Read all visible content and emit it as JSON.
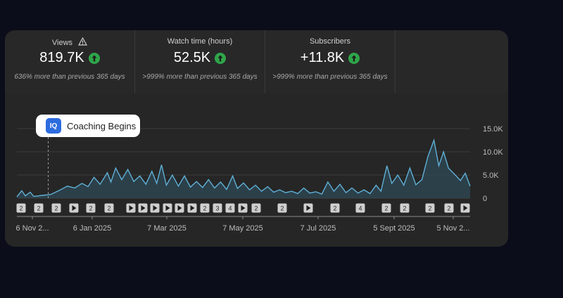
{
  "metrics": [
    {
      "label": "Views",
      "value": "819.7K",
      "note": "636% more than previous 365 days",
      "warn_icon": "warning-triangle-icon"
    },
    {
      "label": "Watch time (hours)",
      "value": "52.5K",
      "note": ">999% more than previous 365 days"
    },
    {
      "label": "Subscribers",
      "value": "+11.8K",
      "note": ">999% more than previous 365 days"
    }
  ],
  "trend_icon": "trend-up-circle-icon",
  "colors": {
    "positive": "#2fa54a",
    "line": "#5fb0d6",
    "area": "#2f4a57"
  },
  "callout": {
    "label": "Coaching Begins",
    "logo_text": "IQ"
  },
  "markers": [
    {
      "kind": "count",
      "text": "2"
    },
    {
      "kind": "count",
      "text": "2"
    },
    {
      "kind": "count",
      "text": "2"
    },
    {
      "kind": "play",
      "text": ""
    },
    {
      "kind": "count",
      "text": "2"
    },
    {
      "kind": "count",
      "text": "2"
    },
    {
      "kind": "play",
      "text": ""
    },
    {
      "kind": "play",
      "text": ""
    },
    {
      "kind": "play",
      "text": ""
    },
    {
      "kind": "play",
      "text": ""
    },
    {
      "kind": "play",
      "text": ""
    },
    {
      "kind": "play",
      "text": ""
    },
    {
      "kind": "count",
      "text": "2"
    },
    {
      "kind": "count",
      "text": "3"
    },
    {
      "kind": "count",
      "text": "4"
    },
    {
      "kind": "play",
      "text": ""
    },
    {
      "kind": "count",
      "text": "2"
    },
    {
      "kind": "count",
      "text": "2"
    },
    {
      "kind": "play",
      "text": ""
    },
    {
      "kind": "count",
      "text": "2"
    },
    {
      "kind": "count",
      "text": "4"
    },
    {
      "kind": "count",
      "text": "2"
    },
    {
      "kind": "count",
      "text": "2"
    },
    {
      "kind": "count",
      "text": "2"
    },
    {
      "kind": "count",
      "text": "2"
    },
    {
      "kind": "play",
      "text": ""
    }
  ],
  "chart_data": {
    "type": "area",
    "y_ticks": [
      "15.0K",
      "10.0K",
      "5.0K",
      "0"
    ],
    "ylim": [
      0,
      15000
    ],
    "x_labels": [
      "6 Nov 2...",
      "6 Jan 2025",
      "7 Mar 2025",
      "7 May 2025",
      "7 Jul 2025",
      "5 Sept 2025",
      "5 Nov 2..."
    ],
    "grid": true,
    "annotation": {
      "label": "Coaching Begins",
      "x": "2024-12-02"
    },
    "series": [
      {
        "values": [
          {
            "x": "2024-11-06",
            "y": 300
          },
          {
            "x": "2024-11-10",
            "y": 1600
          },
          {
            "x": "2024-11-13",
            "y": 500
          },
          {
            "x": "2024-11-17",
            "y": 1300
          },
          {
            "x": "2024-11-20",
            "y": 400
          },
          {
            "x": "2024-11-27",
            "y": 600
          },
          {
            "x": "2024-12-04",
            "y": 800
          },
          {
            "x": "2024-12-12",
            "y": 1800
          },
          {
            "x": "2024-12-18",
            "y": 2600
          },
          {
            "x": "2024-12-24",
            "y": 2200
          },
          {
            "x": "2024-12-30",
            "y": 3200
          },
          {
            "x": "2025-01-04",
            "y": 2500
          },
          {
            "x": "2025-01-09",
            "y": 4500
          },
          {
            "x": "2025-01-14",
            "y": 3000
          },
          {
            "x": "2025-01-20",
            "y": 5500
          },
          {
            "x": "2025-01-23",
            "y": 3500
          },
          {
            "x": "2025-01-27",
            "y": 6500
          },
          {
            "x": "2025-02-01",
            "y": 4000
          },
          {
            "x": "2025-02-06",
            "y": 6200
          },
          {
            "x": "2025-02-11",
            "y": 3600
          },
          {
            "x": "2025-02-16",
            "y": 4800
          },
          {
            "x": "2025-02-21",
            "y": 3000
          },
          {
            "x": "2025-02-26",
            "y": 5800
          },
          {
            "x": "2025-03-02",
            "y": 3200
          },
          {
            "x": "2025-03-06",
            "y": 7200
          },
          {
            "x": "2025-03-10",
            "y": 2800
          },
          {
            "x": "2025-03-15",
            "y": 5000
          },
          {
            "x": "2025-03-20",
            "y": 2600
          },
          {
            "x": "2025-03-25",
            "y": 4800
          },
          {
            "x": "2025-03-30",
            "y": 2400
          },
          {
            "x": "2025-04-04",
            "y": 3600
          },
          {
            "x": "2025-04-09",
            "y": 2300
          },
          {
            "x": "2025-04-14",
            "y": 4000
          },
          {
            "x": "2025-04-19",
            "y": 2200
          },
          {
            "x": "2025-04-24",
            "y": 3500
          },
          {
            "x": "2025-04-29",
            "y": 1900
          },
          {
            "x": "2025-05-04",
            "y": 4800
          },
          {
            "x": "2025-05-08",
            "y": 2100
          },
          {
            "x": "2025-05-13",
            "y": 3300
          },
          {
            "x": "2025-05-18",
            "y": 1800
          },
          {
            "x": "2025-05-23",
            "y": 2800
          },
          {
            "x": "2025-05-28",
            "y": 1500
          },
          {
            "x": "2025-06-02",
            "y": 2500
          },
          {
            "x": "2025-06-07",
            "y": 1300
          },
          {
            "x": "2025-06-12",
            "y": 1800
          },
          {
            "x": "2025-06-17",
            "y": 1200
          },
          {
            "x": "2025-06-22",
            "y": 1500
          },
          {
            "x": "2025-06-27",
            "y": 1000
          },
          {
            "x": "2025-07-02",
            "y": 2200
          },
          {
            "x": "2025-07-07",
            "y": 1100
          },
          {
            "x": "2025-07-12",
            "y": 1400
          },
          {
            "x": "2025-07-17",
            "y": 900
          },
          {
            "x": "2025-07-22",
            "y": 3500
          },
          {
            "x": "2025-07-27",
            "y": 1500
          },
          {
            "x": "2025-08-01",
            "y": 3000
          },
          {
            "x": "2025-08-06",
            "y": 1200
          },
          {
            "x": "2025-08-11",
            "y": 2200
          },
          {
            "x": "2025-08-16",
            "y": 1100
          },
          {
            "x": "2025-08-21",
            "y": 1800
          },
          {
            "x": "2025-08-26",
            "y": 1000
          },
          {
            "x": "2025-08-31",
            "y": 2800
          },
          {
            "x": "2025-09-04",
            "y": 1500
          },
          {
            "x": "2025-09-09",
            "y": 7000
          },
          {
            "x": "2025-09-13",
            "y": 3200
          },
          {
            "x": "2025-09-18",
            "y": 5000
          },
          {
            "x": "2025-09-23",
            "y": 2800
          },
          {
            "x": "2025-09-28",
            "y": 6500
          },
          {
            "x": "2025-10-03",
            "y": 2900
          },
          {
            "x": "2025-10-08",
            "y": 4000
          },
          {
            "x": "2025-10-13",
            "y": 9000
          },
          {
            "x": "2025-10-18",
            "y": 12500
          },
          {
            "x": "2025-10-22",
            "y": 7000
          },
          {
            "x": "2025-10-26",
            "y": 10000
          },
          {
            "x": "2025-10-30",
            "y": 6500
          },
          {
            "x": "2025-11-04",
            "y": 5200
          },
          {
            "x": "2025-11-09",
            "y": 3800
          },
          {
            "x": "2025-11-13",
            "y": 5400
          },
          {
            "x": "2025-11-17",
            "y": 2600
          }
        ]
      }
    ]
  }
}
